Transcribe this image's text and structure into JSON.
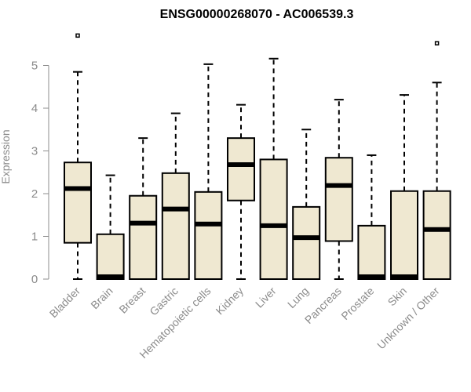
{
  "chart_data": {
    "type": "boxplot",
    "title": "ENSG00000268070 - AC006539.3",
    "xlabel": "",
    "ylabel": "Expression",
    "ylim": [
      0,
      5.75
    ],
    "yticks": [
      0,
      1,
      2,
      3,
      4,
      5
    ],
    "grid": false,
    "categories": [
      "Bladder",
      "Brain",
      "Breast",
      "Gastric",
      "Hematopoietic cells",
      "Kidney",
      "Liver",
      "Lung",
      "Pancreas",
      "Prostate",
      "Skin",
      "Unknown / Other"
    ],
    "boxes": [
      {
        "whisker_low": 0,
        "q1": 0.85,
        "median": 2.12,
        "q3": 2.73,
        "whisker_high": 4.85,
        "outliers": [
          5.7
        ]
      },
      {
        "whisker_low": 0,
        "q1": 0,
        "median": 0.01,
        "q3": 1.05,
        "whisker_high": 2.43,
        "outliers": []
      },
      {
        "whisker_low": 0,
        "q1": 0,
        "median": 1.31,
        "q3": 1.95,
        "whisker_high": 3.3,
        "outliers": []
      },
      {
        "whisker_low": 0,
        "q1": 0,
        "median": 1.64,
        "q3": 2.48,
        "whisker_high": 3.88,
        "outliers": []
      },
      {
        "whisker_low": 0,
        "q1": 0,
        "median": 1.29,
        "q3": 2.04,
        "whisker_high": 5.03,
        "outliers": []
      },
      {
        "whisker_low": 0,
        "q1": 1.84,
        "median": 2.68,
        "q3": 3.3,
        "whisker_high": 4.08,
        "outliers": []
      },
      {
        "whisker_low": 0,
        "q1": 0,
        "median": 1.25,
        "q3": 2.8,
        "whisker_high": 5.16,
        "outliers": []
      },
      {
        "whisker_low": 0,
        "q1": 0,
        "median": 0.97,
        "q3": 1.69,
        "whisker_high": 3.5,
        "outliers": []
      },
      {
        "whisker_low": 0,
        "q1": 0.89,
        "median": 2.19,
        "q3": 2.84,
        "whisker_high": 4.2,
        "outliers": []
      },
      {
        "whisker_low": 0,
        "q1": 0,
        "median": 0.01,
        "q3": 1.25,
        "whisker_high": 2.9,
        "outliers": []
      },
      {
        "whisker_low": 0,
        "q1": 0,
        "median": 0.01,
        "q3": 2.06,
        "whisker_high": 4.31,
        "outliers": []
      },
      {
        "whisker_low": 0,
        "q1": 0,
        "median": 1.16,
        "q3": 2.06,
        "whisker_high": 4.6,
        "outliers": [
          5.52
        ]
      }
    ],
    "colors": {
      "box_fill": "#efe8d1",
      "box_stroke": "#000000",
      "axis": "#8c8c8c"
    }
  }
}
